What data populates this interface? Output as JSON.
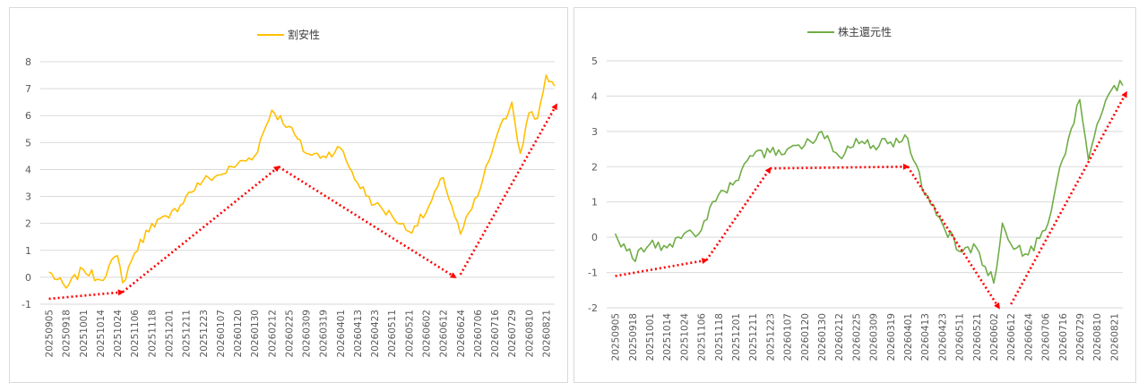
{
  "chart_data": [
    {
      "type": "line",
      "series_name": "割安性",
      "color": "#FFC000",
      "ylim": [
        -1,
        8
      ],
      "yticks": [
        "-1",
        "0",
        "1",
        "2",
        "3",
        "4",
        "5",
        "6",
        "7",
        "8"
      ],
      "x_tick_labels": [
        "20250905",
        "20250918",
        "20251001",
        "20251014",
        "20251024",
        "20251106",
        "20251118",
        "20251201",
        "20251211",
        "20251223",
        "20260107",
        "20260120",
        "20260130",
        "20260212",
        "20260225",
        "20260309",
        "20260319",
        "20260401",
        "20260413",
        "20260423",
        "20260511",
        "20260521",
        "20260602",
        "20260612",
        "20260624",
        "20260706",
        "20260716",
        "20260729",
        "20260810",
        "20260821"
      ],
      "keypoints": [
        [
          0,
          0.2
        ],
        [
          1,
          -0.4
        ],
        [
          2,
          0.3
        ],
        [
          3,
          -0.1
        ],
        [
          4,
          0.8
        ],
        [
          4.3,
          -0.2
        ],
        [
          5,
          0.9
        ],
        [
          6,
          2.0
        ],
        [
          7,
          2.2
        ],
        [
          8,
          3.0
        ],
        [
          9,
          3.6
        ],
        [
          10,
          3.8
        ],
        [
          11,
          4.2
        ],
        [
          12,
          4.5
        ],
        [
          13,
          6.2
        ],
        [
          14,
          5.6
        ],
        [
          15,
          4.6
        ],
        [
          16,
          4.5
        ],
        [
          17,
          4.8
        ],
        [
          18,
          3.5
        ],
        [
          19,
          2.7
        ],
        [
          20,
          2.3
        ],
        [
          21,
          1.7
        ],
        [
          22,
          2.4
        ],
        [
          23,
          3.7
        ],
        [
          24,
          1.6
        ],
        [
          25,
          3.0
        ],
        [
          26,
          5.0
        ],
        [
          27,
          6.5
        ],
        [
          27.5,
          4.6
        ],
        [
          28,
          6.1
        ],
        [
          28.5,
          5.9
        ],
        [
          29,
          7.5
        ],
        [
          29.5,
          7.1
        ]
      ],
      "trend_arrows": [
        [
          [
            0,
            -0.8
          ],
          [
            4.3,
            -0.55
          ]
        ],
        [
          [
            4.3,
            -0.55
          ],
          [
            13.4,
            4.1
          ]
        ],
        [
          [
            13.4,
            4.1
          ],
          [
            23.7,
            0.0
          ]
        ],
        [
          [
            24,
            0.1
          ],
          [
            29.6,
            6.4
          ]
        ]
      ]
    },
    {
      "type": "line",
      "series_name": "株主還元性",
      "color": "#70AD47",
      "ylim": [
        -2,
        5
      ],
      "yticks": [
        "-2",
        "-1",
        "0",
        "1",
        "2",
        "3",
        "4",
        "5"
      ],
      "x_tick_labels": [
        "20250905",
        "20250918",
        "20251001",
        "20251014",
        "20251024",
        "20251106",
        "20251118",
        "20251201",
        "20251211",
        "20251223",
        "20260107",
        "20260120",
        "20260130",
        "20260212",
        "20260225",
        "20260309",
        "20260319",
        "20260401",
        "20260413",
        "20260423",
        "20260511",
        "20260521",
        "20260602",
        "20260612",
        "20260624",
        "20260706",
        "20260716",
        "20260729",
        "20260810",
        "20260821"
      ],
      "keypoints": [
        [
          0,
          0.1
        ],
        [
          1,
          -0.6
        ],
        [
          2,
          -0.2
        ],
        [
          3,
          -0.3
        ],
        [
          4,
          0.1
        ],
        [
          5,
          0.2
        ],
        [
          6,
          1.2
        ],
        [
          7,
          1.6
        ],
        [
          8,
          2.3
        ],
        [
          9,
          2.4
        ],
        [
          10,
          2.5
        ],
        [
          11,
          2.6
        ],
        [
          12,
          3.0
        ],
        [
          13,
          2.3
        ],
        [
          14,
          2.8
        ],
        [
          15,
          2.6
        ],
        [
          16,
          2.7
        ],
        [
          17,
          2.8
        ],
        [
          18,
          1.2
        ],
        [
          19,
          0.4
        ],
        [
          20,
          -0.4
        ],
        [
          21,
          -0.3
        ],
        [
          22,
          -1.3
        ],
        [
          22.5,
          0.4
        ],
        [
          23,
          -0.2
        ],
        [
          24,
          -0.5
        ],
        [
          25,
          0.2
        ],
        [
          26,
          2.2
        ],
        [
          27,
          3.9
        ],
        [
          27.5,
          2.2
        ],
        [
          28,
          3.2
        ],
        [
          29,
          4.3
        ],
        [
          29.5,
          4.3
        ]
      ],
      "trend_arrows": [
        [
          [
            0,
            -1.1
          ],
          [
            5.3,
            -0.65
          ]
        ],
        [
          [
            5.3,
            -0.65
          ],
          [
            9,
            1.95
          ]
        ],
        [
          [
            9,
            1.95
          ],
          [
            17,
            2.0
          ]
        ],
        [
          [
            17,
            2.0
          ],
          [
            22.3,
            -2.0
          ]
        ],
        [
          [
            23,
            -1.9
          ],
          [
            29.7,
            4.1
          ]
        ]
      ]
    }
  ]
}
